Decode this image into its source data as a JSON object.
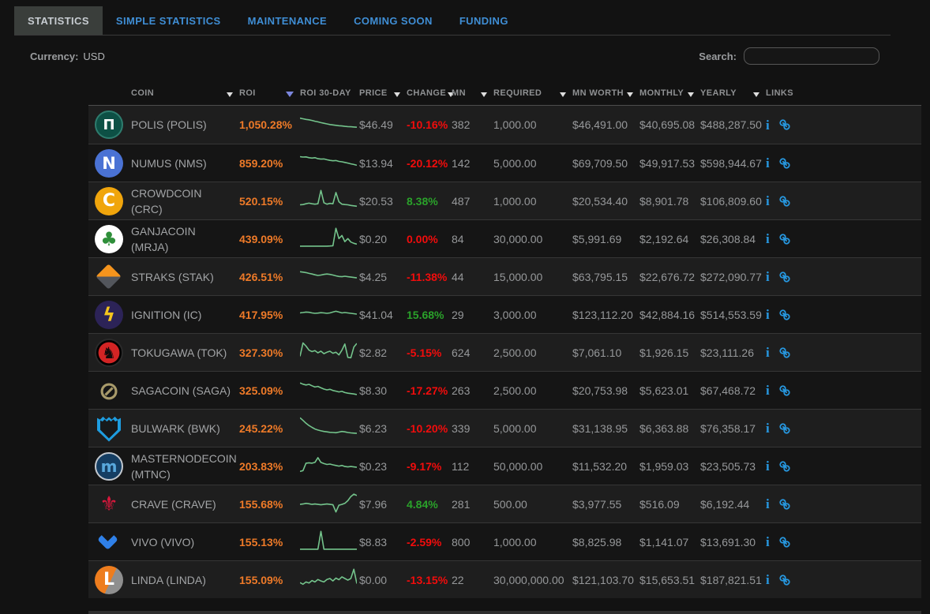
{
  "tabs": [
    {
      "label": "STATISTICS",
      "active": true
    },
    {
      "label": "SIMPLE STATISTICS",
      "active": false
    },
    {
      "label": "MAINTENANCE",
      "active": false
    },
    {
      "label": "COMING SOON",
      "active": false
    },
    {
      "label": "FUNDING",
      "active": false
    }
  ],
  "toolbar": {
    "currency_label": "Currency:",
    "currency_value": "USD",
    "search_label": "Search:",
    "search_value": ""
  },
  "table": {
    "columns": [
      {
        "key": "icon",
        "label": "",
        "sortable": false
      },
      {
        "key": "coin",
        "label": "COIN",
        "sortable": true
      },
      {
        "key": "roi",
        "label": "ROI",
        "sortable": true,
        "sort": "desc"
      },
      {
        "key": "spark",
        "label": "ROI 30-DAY",
        "sortable": false
      },
      {
        "key": "price",
        "label": "PRICE",
        "sortable": true
      },
      {
        "key": "change",
        "label": "CHANGE",
        "sortable": true
      },
      {
        "key": "mn",
        "label": "MN",
        "sortable": true
      },
      {
        "key": "required",
        "label": "REQUIRED",
        "sortable": true
      },
      {
        "key": "mnworth",
        "label": "MN WORTH",
        "sortable": true
      },
      {
        "key": "monthly",
        "label": "MONTHLY",
        "sortable": true
      },
      {
        "key": "yearly",
        "label": "YEARLY",
        "sortable": true
      },
      {
        "key": "links",
        "label": "LINKS",
        "sortable": false
      }
    ],
    "rows": [
      {
        "name": "POLIS (POLIS)",
        "roi": "1,050.28%",
        "price": "$46.49",
        "change": "-10.16%",
        "change_dir": "neg",
        "mn": "382",
        "required": "1,000.00",
        "mn_worth": "$46,491.00",
        "monthly": "$40,695.08",
        "yearly": "$488,287.50",
        "icon": {
          "shape": "circle",
          "bg": "#0d5045",
          "fg": "#ffffff",
          "glyph": "Π",
          "fsize": 18,
          "ring": "#2e7c6e",
          "name": "polis-coin-icon"
        },
        "spark": [
          0.78,
          0.75,
          0.72,
          0.7,
          0.67,
          0.63,
          0.6,
          0.56,
          0.53,
          0.5,
          0.47,
          0.45,
          0.43,
          0.41,
          0.4,
          0.38,
          0.37,
          0.36,
          0.35,
          0.34
        ]
      },
      {
        "name": "NUMUS (NMS)",
        "roi": "859.20%",
        "price": "$13.94",
        "change": "-20.12%",
        "change_dir": "neg",
        "mn": "142",
        "required": "5,000.00",
        "mn_worth": "$69,709.50",
        "monthly": "$49,917.53",
        "yearly": "$598,944.67",
        "icon": {
          "shape": "circle",
          "bg": "#4a72d4",
          "fg": "#ffffff",
          "glyph": "N",
          "fsize": 21,
          "name": "numus-coin-icon"
        },
        "spark": [
          0.75,
          0.73,
          0.74,
          0.7,
          0.68,
          0.7,
          0.65,
          0.63,
          0.64,
          0.6,
          0.57,
          0.55,
          0.56,
          0.52,
          0.5,
          0.47,
          0.44,
          0.4,
          0.37,
          0.33
        ]
      },
      {
        "name": "CROWDCOIN (CRC)",
        "roi": "520.15%",
        "price": "$20.53",
        "change": "8.38%",
        "change_dir": "pos",
        "mn": "487",
        "required": "1,000.00",
        "mn_worth": "$20,534.40",
        "monthly": "$8,901.78",
        "yearly": "$106,809.60",
        "icon": {
          "shape": "circle",
          "bg": "#f0a50c",
          "fg": "#ffffff",
          "glyph": "C",
          "fsize": 22,
          "name": "crowdcoin-coin-icon"
        },
        "spark": [
          0.25,
          0.26,
          0.3,
          0.33,
          0.3,
          0.28,
          0.3,
          0.95,
          0.35,
          0.28,
          0.32,
          0.3,
          0.85,
          0.4,
          0.28,
          0.26,
          0.25,
          0.22,
          0.2,
          0.18
        ]
      },
      {
        "name": "GANJACOIN (MRJA)",
        "roi": "439.09%",
        "price": "$0.20",
        "change": "0.00%",
        "change_dir": "neg",
        "mn": "84",
        "required": "30,000.00",
        "mn_worth": "$5,991.69",
        "monthly": "$2,192.64",
        "yearly": "$26,308.84",
        "icon": {
          "shape": "circle",
          "bg": "#ffffff",
          "fg": "#2f8f3a",
          "glyph": "♣",
          "fsize": 24,
          "name": "ganjacoin-coin-icon"
        },
        "spark": [
          0.08,
          0.08,
          0.08,
          0.08,
          0.08,
          0.08,
          0.08,
          0.08,
          0.08,
          0.08,
          0.09,
          0.1,
          0.95,
          0.45,
          0.6,
          0.3,
          0.45,
          0.28,
          0.22,
          0.18
        ]
      },
      {
        "name": "STRAKS (STAK)",
        "roi": "426.51%",
        "price": "$4.25",
        "change": "-11.38%",
        "change_dir": "neg",
        "mn": "44",
        "required": "15,000.00",
        "mn_worth": "$63,795.15",
        "monthly": "$22,676.72",
        "yearly": "$272,090.77",
        "icon": {
          "shape": "diamond",
          "name": "straks-coin-icon"
        },
        "spark": [
          0.68,
          0.66,
          0.64,
          0.6,
          0.57,
          0.53,
          0.5,
          0.52,
          0.55,
          0.57,
          0.55,
          0.52,
          0.48,
          0.45,
          0.44,
          0.46,
          0.44,
          0.42,
          0.4,
          0.38
        ]
      },
      {
        "name": "IGNITION (IC)",
        "roi": "417.95%",
        "price": "$41.04",
        "change": "15.68%",
        "change_dir": "pos",
        "mn": "29",
        "required": "3,000.00",
        "mn_worth": "$123,112.20",
        "monthly": "$42,884.16",
        "yearly": "$514,553.59",
        "icon": {
          "shape": "circle",
          "bg": "#2c2357",
          "fg": "#f6c51d",
          "glyph": "ϟ",
          "fsize": 24,
          "name": "ignition-coin-icon"
        },
        "spark": [
          0.52,
          0.54,
          0.56,
          0.55,
          0.52,
          0.5,
          0.51,
          0.53,
          0.52,
          0.5,
          0.52,
          0.56,
          0.6,
          0.56,
          0.52,
          0.54,
          0.52,
          0.5,
          0.48,
          0.46
        ]
      },
      {
        "name": "TOKUGAWA (TOK)",
        "roi": "327.30%",
        "price": "$2.82",
        "change": "-5.15%",
        "change_dir": "neg",
        "mn": "624",
        "required": "2,500.00",
        "mn_worth": "$7,061.10",
        "monthly": "$1,926.15",
        "yearly": "$23,111.26",
        "icon": {
          "shape": "circle",
          "bg": "#000000",
          "inner": "#d32424",
          "fg": "#140a0a",
          "glyph": "♞",
          "fsize": 20,
          "ring": "#2a2a2a",
          "name": "tokugawa-coin-icon"
        },
        "spark": [
          0.25,
          0.9,
          0.75,
          0.55,
          0.48,
          0.53,
          0.42,
          0.5,
          0.38,
          0.45,
          0.5,
          0.4,
          0.45,
          0.32,
          0.55,
          0.85,
          0.2,
          0.18,
          0.7,
          0.88
        ]
      },
      {
        "name": "SAGACOIN (SAGA)",
        "roi": "325.09%",
        "price": "$8.30",
        "change": "-17.27%",
        "change_dir": "neg",
        "mn": "263",
        "required": "2,500.00",
        "mn_worth": "$20,753.98",
        "monthly": "$5,623.01",
        "yearly": "$67,468.72",
        "icon": {
          "shape": "plain",
          "fg": "#a89a6a",
          "glyph": "⊘",
          "fsize": 32,
          "name": "sagacoin-coin-icon"
        },
        "spark": [
          0.8,
          0.74,
          0.7,
          0.73,
          0.66,
          0.6,
          0.63,
          0.56,
          0.5,
          0.46,
          0.49,
          0.43,
          0.4,
          0.36,
          0.39,
          0.33,
          0.3,
          0.28,
          0.26,
          0.23
        ]
      },
      {
        "name": "BULWARK (BWK)",
        "roi": "245.22%",
        "price": "$6.23",
        "change": "-10.20%",
        "change_dir": "neg",
        "mn": "339",
        "required": "5,000.00",
        "mn_worth": "$31,138.95",
        "monthly": "$6,363.88",
        "yearly": "$76,358.17",
        "icon": {
          "shape": "shield",
          "bg": "#1e9de0",
          "inner2": "#17191b",
          "name": "bulwark-coin-icon"
        },
        "spark": [
          0.95,
          0.82,
          0.68,
          0.57,
          0.48,
          0.4,
          0.35,
          0.31,
          0.28,
          0.26,
          0.24,
          0.23,
          0.22,
          0.25,
          0.28,
          0.26,
          0.23,
          0.21,
          0.2,
          0.19
        ]
      },
      {
        "name": "MASTERNODECOIN (MTNC)",
        "roi": "203.83%",
        "price": "$0.23",
        "change": "-9.17%",
        "change_dir": "neg",
        "mn": "112",
        "required": "50,000.00",
        "mn_worth": "$11,532.20",
        "monthly": "$1,959.03",
        "yearly": "$23,505.73",
        "icon": {
          "shape": "circle",
          "bg": "#153e63",
          "fg": "#58a8dc",
          "glyph": "m",
          "fsize": 20,
          "ring": "#c2c8cf",
          "name": "masternodecoin-coin-icon"
        },
        "spark": [
          0.18,
          0.22,
          0.58,
          0.6,
          0.58,
          0.62,
          0.85,
          0.62,
          0.56,
          0.52,
          0.54,
          0.5,
          0.47,
          0.44,
          0.47,
          0.42,
          0.4,
          0.42,
          0.4,
          0.38
        ]
      },
      {
        "name": "CRAVE (CRAVE)",
        "roi": "155.68%",
        "price": "$7.96",
        "change": "4.84%",
        "change_dir": "pos",
        "mn": "281",
        "required": "500.00",
        "mn_worth": "$3,977.55",
        "monthly": "$516.09",
        "yearly": "$6,192.44",
        "icon": {
          "shape": "plain",
          "fg": "#d8173c",
          "glyph": "⚜",
          "fsize": 26,
          "name": "crave-coin-icon"
        },
        "spark": [
          0.42,
          0.44,
          0.47,
          0.45,
          0.42,
          0.44,
          0.42,
          0.4,
          0.42,
          0.44,
          0.42,
          0.4,
          0.05,
          0.38,
          0.42,
          0.47,
          0.6,
          0.8,
          0.92,
          0.85
        ]
      },
      {
        "name": "VIVO (VIVO)",
        "roi": "155.13%",
        "price": "$8.83",
        "change": "-2.59%",
        "change_dir": "neg",
        "mn": "800",
        "required": "1,000.00",
        "mn_worth": "$8,825.98",
        "monthly": "$1,141.07",
        "yearly": "$13,691.30",
        "icon": {
          "shape": "chevron",
          "fg": "#2f80e8",
          "name": "vivo-coin-icon"
        },
        "spark": [
          0.08,
          0.08,
          0.08,
          0.08,
          0.08,
          0.08,
          0.08,
          0.95,
          0.08,
          0.08,
          0.08,
          0.08,
          0.08,
          0.08,
          0.08,
          0.08,
          0.08,
          0.08,
          0.08,
          0.08
        ]
      },
      {
        "name": "LINDA (LINDA)",
        "roi": "155.09%",
        "price": "$0.00",
        "change": "-13.15%",
        "change_dir": "neg",
        "mn": "22",
        "required": "30,000,000.00",
        "mn_worth": "$121,103.70",
        "monthly": "$15,653.51",
        "yearly": "$187,821.51",
        "icon": {
          "shape": "circle",
          "bg": "#ee7d1e",
          "bg2": "#8f8f8f",
          "fg": "#ffffff",
          "glyph": "L",
          "fsize": 22,
          "name": "linda-coin-icon"
        },
        "spark": [
          0.3,
          0.22,
          0.33,
          0.28,
          0.4,
          0.33,
          0.45,
          0.38,
          0.33,
          0.45,
          0.5,
          0.38,
          0.52,
          0.44,
          0.58,
          0.5,
          0.42,
          0.5,
          0.95,
          0.25
        ]
      }
    ]
  },
  "icons": {
    "info": {
      "name": "info-icon",
      "glyph": "i"
    },
    "link": {
      "name": "link-icon"
    }
  },
  "colors": {
    "accent_tab_blue": "#3f8ed5",
    "roi_orange": "#ee7a28",
    "change_negative": "#f20c0c",
    "change_positive": "#2aa22a",
    "sparkline_green": "#74c48c",
    "links_blue": "#2798e0",
    "sort_active": "#7b86dd"
  }
}
